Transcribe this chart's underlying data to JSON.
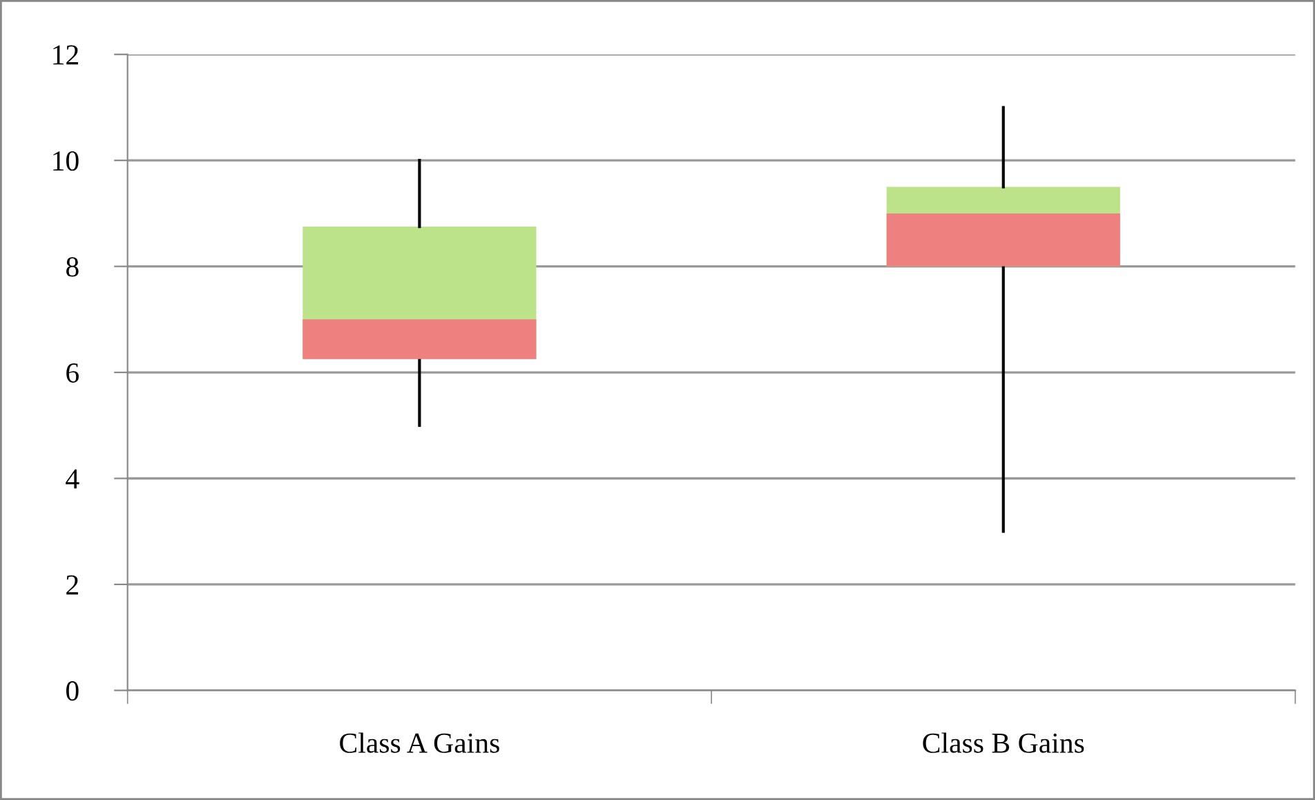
{
  "chart_data": {
    "type": "box",
    "categories": [
      "Class A Gains",
      "Class B Gains"
    ],
    "boxes": [
      {
        "low": 5,
        "q1": 6.25,
        "median": 7,
        "q3": 8.75,
        "high": 10
      },
      {
        "low": 3,
        "q1": 8,
        "median": 9,
        "q3": 9.5,
        "high": 11
      }
    ],
    "colors": [
      "#ee8080",
      "#bde38a"
    ],
    "ylim": [
      0,
      12
    ],
    "yticks": [
      0,
      2,
      4,
      6,
      8,
      10,
      12
    ],
    "grid": "y",
    "legend": false
  }
}
